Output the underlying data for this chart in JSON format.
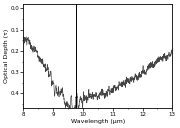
{
  "title": "",
  "xlabel": "Wavelength (μm)",
  "ylabel": "Optical Depth (τ)",
  "xlim": [
    8.0,
    13.0
  ],
  "ylim": [
    0.47,
    -0.02
  ],
  "xticks": [
    8,
    9,
    10,
    11,
    12,
    13
  ],
  "yticks": [
    0.0,
    0.1,
    0.2,
    0.3,
    0.4
  ],
  "line_color": "#444444",
  "background_color": "#ffffff",
  "vline_x": 9.75,
  "vline_color": "#000000",
  "seed": 7
}
